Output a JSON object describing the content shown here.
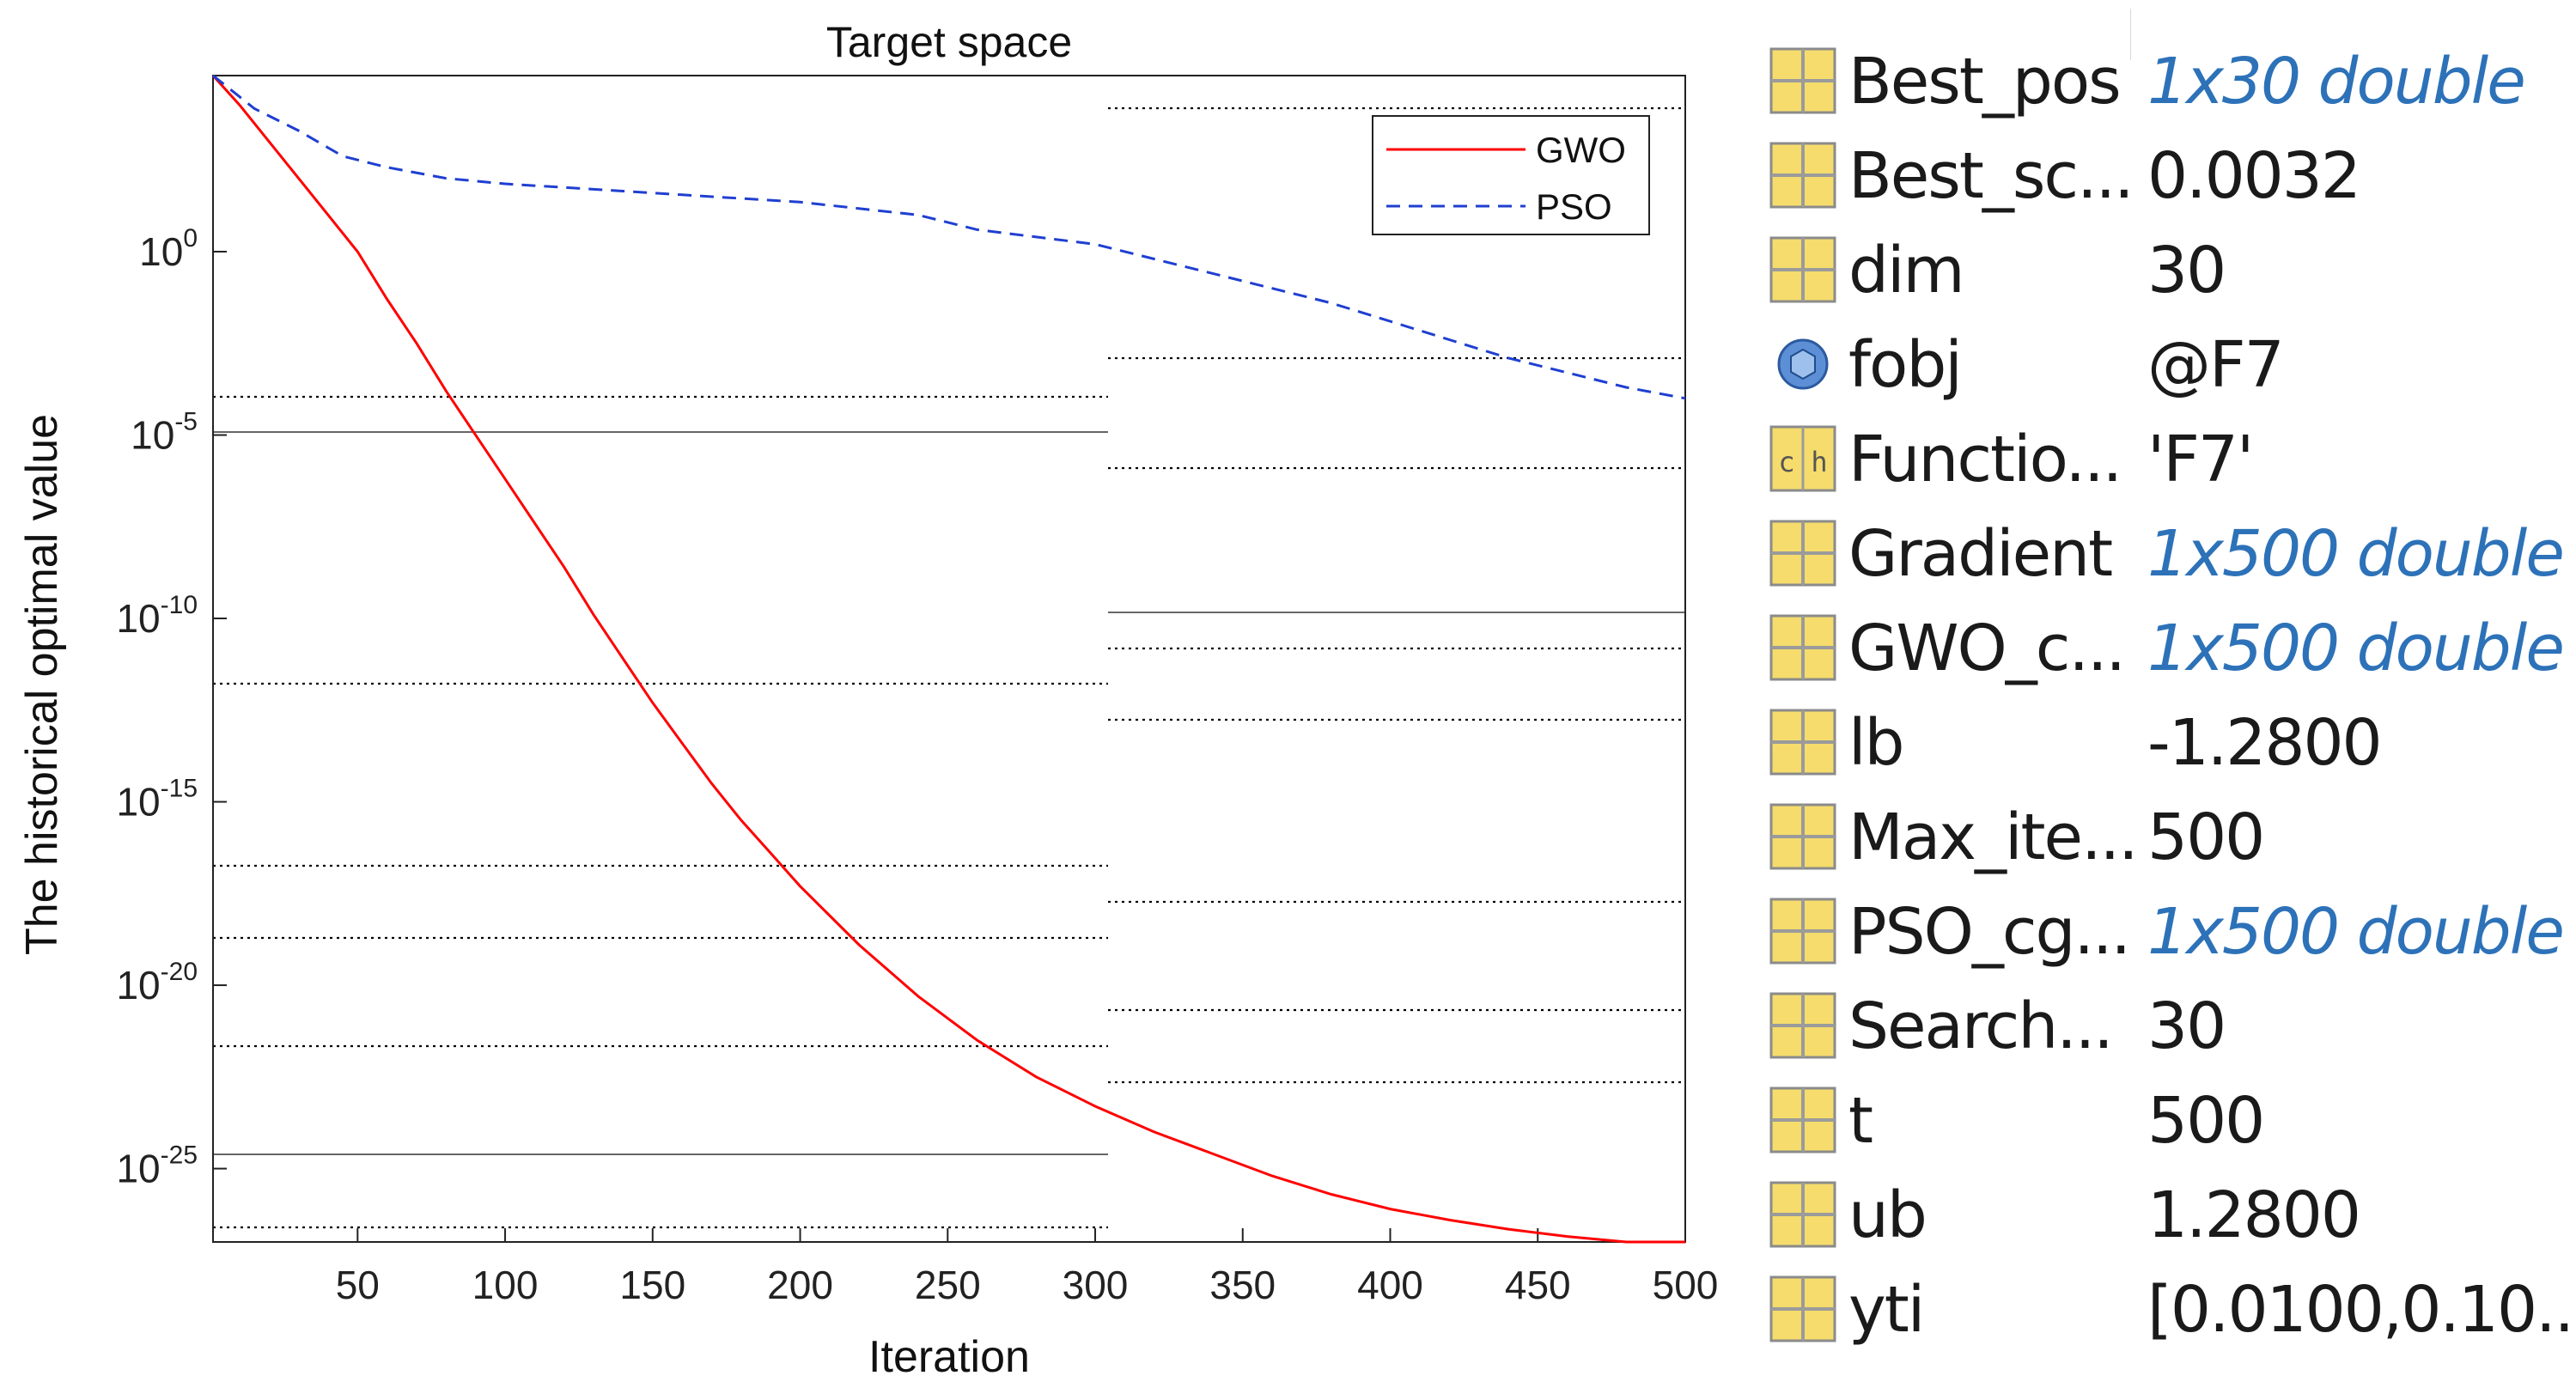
{
  "chart_data": {
    "type": "line",
    "title": "Target space",
    "xlabel": "Iteration",
    "ylabel": "The historical optimal value",
    "yscale": "log",
    "xlim": [
      1,
      500
    ],
    "ylim_exponent": [
      -27,
      4.8
    ],
    "xticks": [
      50,
      100,
      150,
      200,
      250,
      300,
      350,
      400,
      450,
      500
    ],
    "yticks": [
      {
        "base": "10",
        "exp": "0",
        "value_exp": 0
      },
      {
        "base": "10",
        "exp": "-5",
        "value_exp": -5
      },
      {
        "base": "10",
        "exp": "-10",
        "value_exp": -10
      },
      {
        "base": "10",
        "exp": "-15",
        "value_exp": -15
      },
      {
        "base": "10",
        "exp": "-20",
        "value_exp": -20
      },
      {
        "base": "10",
        "exp": "-25",
        "value_exp": -25
      }
    ],
    "legend_position": "top-right",
    "series": [
      {
        "name": "GWO",
        "color": "#ff0000",
        "style": "solid",
        "x": [
          1,
          10,
          25,
          40,
          50,
          60,
          70,
          80,
          90,
          100,
          110,
          120,
          130,
          140,
          150,
          160,
          170,
          180,
          190,
          200,
          220,
          240,
          260,
          280,
          300,
          320,
          340,
          360,
          380,
          400,
          420,
          440,
          460,
          480,
          500
        ],
        "log10_y": [
          4.8,
          4.0,
          2.5,
          1.0,
          0.0,
          -1.3,
          -2.5,
          -3.8,
          -5.0,
          -6.2,
          -7.4,
          -8.6,
          -9.9,
          -11.1,
          -12.3,
          -13.4,
          -14.5,
          -15.5,
          -16.4,
          -17.3,
          -18.9,
          -20.3,
          -21.5,
          -22.5,
          -23.3,
          -24.0,
          -24.6,
          -25.2,
          -25.7,
          -26.1,
          -26.4,
          -26.65,
          -26.85,
          -27.0,
          -27.0
        ]
      },
      {
        "name": "PSO",
        "color": "#1f3fd1",
        "style": "dashed",
        "x": [
          1,
          15,
          30,
          45,
          60,
          80,
          100,
          130,
          160,
          200,
          240,
          260,
          300,
          320,
          340,
          360,
          380,
          400,
          420,
          440,
          460,
          480,
          500
        ],
        "log10_y": [
          4.8,
          3.9,
          3.3,
          2.6,
          2.3,
          2.0,
          1.85,
          1.7,
          1.55,
          1.35,
          1.0,
          0.6,
          0.2,
          -0.2,
          -0.6,
          -1.0,
          -1.4,
          -1.9,
          -2.4,
          -2.9,
          -3.3,
          -3.7,
          -4.0
        ]
      }
    ]
  },
  "workspace": {
    "rows": [
      {
        "icon": "matrix-icon",
        "name": "Best_pos",
        "value": "1x30 double",
        "value_style": "italic-blue"
      },
      {
        "icon": "matrix-icon",
        "name": "Best_sc...",
        "value": "0.0032",
        "value_style": "normal"
      },
      {
        "icon": "matrix-icon",
        "name": "dim",
        "value": "30",
        "value_style": "normal"
      },
      {
        "icon": "function-handle-icon",
        "name": "fobj",
        "value": "@F7",
        "value_style": "normal"
      },
      {
        "icon": "char-array-icon",
        "name": "Functio...",
        "value": "'F7'",
        "value_style": "normal"
      },
      {
        "icon": "matrix-icon",
        "name": "Gradient",
        "value": "1x500 double",
        "value_style": "italic-blue"
      },
      {
        "icon": "matrix-icon",
        "name": "GWO_c...",
        "value": "1x500 double",
        "value_style": "italic-blue"
      },
      {
        "icon": "matrix-icon",
        "name": "lb",
        "value": "-1.2800",
        "value_style": "normal"
      },
      {
        "icon": "matrix-icon",
        "name": "Max_ite...",
        "value": "500",
        "value_style": "normal"
      },
      {
        "icon": "matrix-icon",
        "name": "PSO_cg...",
        "value": "1x500 double",
        "value_style": "italic-blue"
      },
      {
        "icon": "matrix-icon",
        "name": "Search...",
        "value": "30",
        "value_style": "normal"
      },
      {
        "icon": "matrix-icon",
        "name": "t",
        "value": "500",
        "value_style": "normal"
      },
      {
        "icon": "matrix-icon",
        "name": "ub",
        "value": "1.2800",
        "value_style": "normal"
      },
      {
        "icon": "matrix-icon",
        "name": "yti",
        "value": "[0.0100,0.10...",
        "value_style": "normal"
      }
    ]
  }
}
